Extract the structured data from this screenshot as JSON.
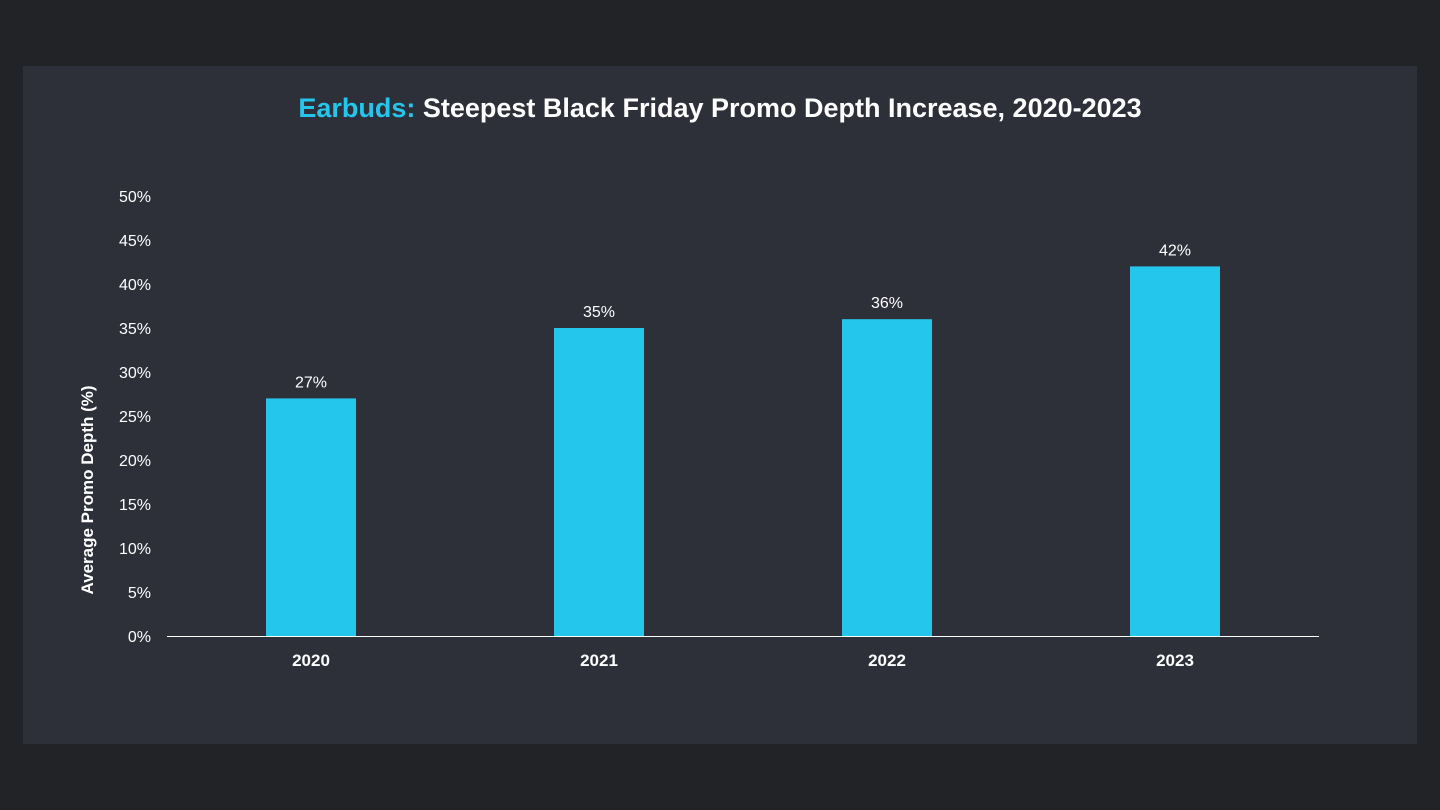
{
  "title": {
    "highlight": "Earbuds:",
    "rest": " Steepest Black Friday Promo Depth Increase, 2020-2023"
  },
  "colors": {
    "background": "#222327",
    "panel": "#2d2f39",
    "accent": "#25c6ec",
    "bar": "#25c6ec",
    "text": "#ffffff"
  },
  "chart_data": {
    "type": "bar",
    "title": "Earbuds: Steepest Black Friday Promo Depth Increase, 2020-2023",
    "xlabel": "",
    "ylabel": "Average Promo Depth (%)",
    "categories": [
      "2020",
      "2021",
      "2022",
      "2023"
    ],
    "values": [
      27,
      35,
      36,
      42
    ],
    "data_labels": [
      "27%",
      "35%",
      "36%",
      "42%"
    ],
    "ylim": [
      0,
      50
    ],
    "yticks": [
      "0%",
      "5%",
      "10%",
      "15%",
      "20%",
      "25%",
      "30%",
      "35%",
      "40%",
      "45%",
      "50%"
    ],
    "grid": false,
    "legend": "none"
  }
}
